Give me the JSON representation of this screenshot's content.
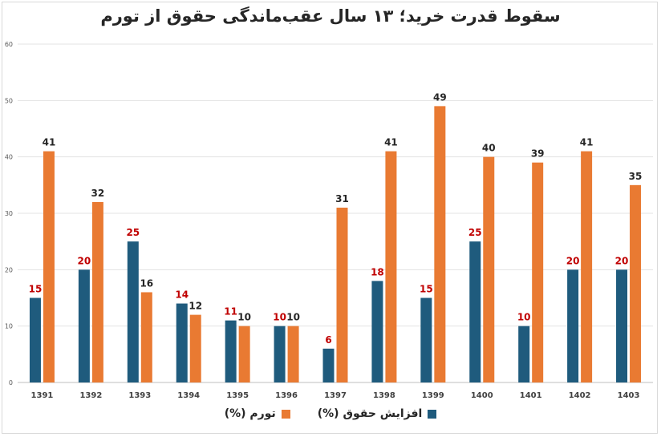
{
  "chart_data": {
    "type": "bar",
    "title": "سقوط قدرت خرید؛ ۱۳ سال عقب‌ماندگی حقوق از تورم",
    "categories": [
      "1391",
      "1392",
      "1393",
      "1394",
      "1395",
      "1396",
      "1397",
      "1398",
      "1399",
      "1400",
      "1401",
      "1402",
      "1403"
    ],
    "series": [
      {
        "name": "افزایش حقوق (%)",
        "color": "#1f5b7d",
        "label_color": "#c00000",
        "values": [
          15,
          20,
          25,
          14,
          11,
          10,
          6,
          18,
          15,
          25,
          10,
          20,
          20
        ]
      },
      {
        "name": "تورم (%)",
        "color": "#e97a32",
        "label_color": "#262626",
        "values": [
          41,
          32,
          16,
          12,
          10,
          10,
          31,
          41,
          49,
          40,
          39,
          41,
          35
        ]
      }
    ],
    "ylim": [
      0,
      60
    ],
    "yticks": [
      0,
      10,
      20,
      30,
      40,
      50,
      60
    ],
    "grid": true,
    "legend": "bottom"
  }
}
